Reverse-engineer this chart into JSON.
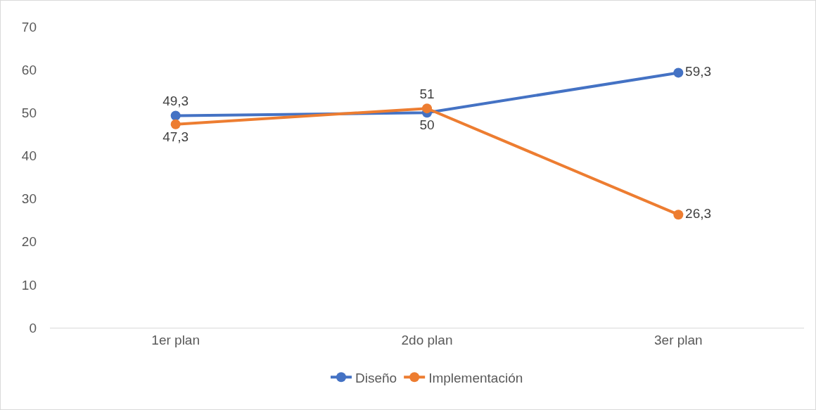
{
  "chart_data": {
    "type": "line",
    "categories": [
      "1er plan",
      "2do plan",
      "3er plan"
    ],
    "series": [
      {
        "name": "Diseño",
        "color": "#4472c4",
        "values": [
          49.3,
          50,
          59.3
        ],
        "value_labels": [
          "49,3",
          "50",
          "59,3"
        ]
      },
      {
        "name": "Implementación",
        "color": "#ed7d31",
        "values": [
          47.3,
          51,
          26.3
        ],
        "value_labels": [
          "47,3",
          "51",
          "26,3"
        ]
      }
    ],
    "ylim": [
      0,
      70
    ],
    "yticks": [
      0,
      10,
      20,
      30,
      40,
      50,
      60,
      70
    ],
    "grid": false,
    "legend": "bottom",
    "marker": "circle",
    "line_style": "solid"
  }
}
